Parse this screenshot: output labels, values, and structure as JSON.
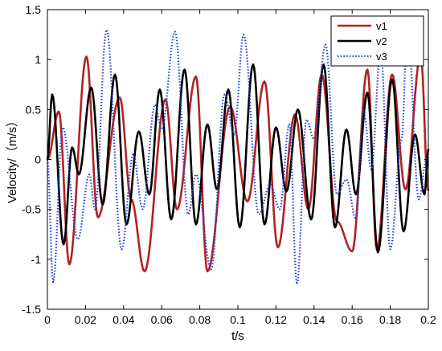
{
  "chart_data": {
    "type": "line",
    "title": "",
    "xlabel": "t/s",
    "ylabel": "Velocity/（m/s）",
    "xlim": [
      0,
      0.2
    ],
    "ylim": [
      -1.5,
      1.5
    ],
    "x_ticks": [
      0,
      0.02,
      0.04,
      0.06,
      0.08,
      0.1,
      0.12,
      0.14,
      0.16,
      0.18,
      0.2
    ],
    "x_tick_labels": [
      "0",
      "0.02",
      "0.04",
      "0.06",
      "0.08",
      "0.1",
      "0.12",
      "0.14",
      "0.16",
      "0.18",
      "0.2"
    ],
    "y_ticks": [
      -1.5,
      -1,
      -0.5,
      0,
      0.5,
      1,
      1.5
    ],
    "y_tick_labels": [
      "-1.5",
      "-1",
      "-0.5",
      "0",
      "0.5",
      "1",
      "1.5"
    ],
    "grid": false,
    "legend_position": "top-right",
    "sample_step": 0.0005,
    "series": [
      {
        "name": "v1",
        "color": "#b22222",
        "style": "solid",
        "peaks": [
          {
            "t": 0.006,
            "v": 0.48
          },
          {
            "t": 0.0115,
            "v": -1.05
          },
          {
            "t": 0.0205,
            "v": 1.03
          },
          {
            "t": 0.0265,
            "v": -0.58
          },
          {
            "t": 0.038,
            "v": 0.62
          },
          {
            "t": 0.044,
            "v": -0.4
          },
          {
            "t": 0.051,
            "v": -1.12
          },
          {
            "t": 0.062,
            "v": 0.6
          },
          {
            "t": 0.068,
            "v": -0.5
          },
          {
            "t": 0.078,
            "v": 0.83
          },
          {
            "t": 0.084,
            "v": -1.12
          },
          {
            "t": 0.096,
            "v": 0.53
          },
          {
            "t": 0.105,
            "v": -0.42
          },
          {
            "t": 0.114,
            "v": 0.78
          },
          {
            "t": 0.121,
            "v": -0.88
          },
          {
            "t": 0.13,
            "v": 0.45
          },
          {
            "t": 0.137,
            "v": -0.5
          },
          {
            "t": 0.144,
            "v": 0.85
          },
          {
            "t": 0.152,
            "v": -0.62
          },
          {
            "t": 0.16,
            "v": -0.92
          },
          {
            "t": 0.168,
            "v": 0.9
          },
          {
            "t": 0.173,
            "v": -0.9
          },
          {
            "t": 0.181,
            "v": 0.85
          },
          {
            "t": 0.188,
            "v": -0.3
          },
          {
            "t": 0.196,
            "v": 1.05
          }
        ]
      },
      {
        "name": "v2",
        "color": "#000000",
        "style": "solid",
        "peaks": [
          {
            "t": 0.0025,
            "v": 0.65
          },
          {
            "t": 0.0085,
            "v": -0.85
          },
          {
            "t": 0.013,
            "v": 0.12
          },
          {
            "t": 0.0165,
            "v": -0.15
          },
          {
            "t": 0.023,
            "v": 0.72
          },
          {
            "t": 0.029,
            "v": -0.45
          },
          {
            "t": 0.0355,
            "v": 0.85
          },
          {
            "t": 0.0415,
            "v": -0.65
          },
          {
            "t": 0.048,
            "v": 0.28
          },
          {
            "t": 0.0535,
            "v": -0.35
          },
          {
            "t": 0.059,
            "v": 0.7
          },
          {
            "t": 0.065,
            "v": -0.6
          },
          {
            "t": 0.072,
            "v": 0.9
          },
          {
            "t": 0.078,
            "v": -0.65
          },
          {
            "t": 0.084,
            "v": 0.35
          },
          {
            "t": 0.089,
            "v": -0.3
          },
          {
            "t": 0.095,
            "v": 0.7
          },
          {
            "t": 0.101,
            "v": -0.68
          },
          {
            "t": 0.108,
            "v": 0.95
          },
          {
            "t": 0.114,
            "v": -0.65
          },
          {
            "t": 0.12,
            "v": 0.32
          },
          {
            "t": 0.1255,
            "v": -0.32
          },
          {
            "t": 0.1315,
            "v": 0.5
          },
          {
            "t": 0.1385,
            "v": -0.6
          },
          {
            "t": 0.145,
            "v": 0.95
          },
          {
            "t": 0.151,
            "v": -0.68
          },
          {
            "t": 0.157,
            "v": 0.3
          },
          {
            "t": 0.162,
            "v": -0.35
          },
          {
            "t": 0.168,
            "v": 0.67
          },
          {
            "t": 0.1735,
            "v": -0.93
          },
          {
            "t": 0.181,
            "v": 0.8
          },
          {
            "t": 0.187,
            "v": -0.72
          },
          {
            "t": 0.193,
            "v": 0.25
          },
          {
            "t": 0.198,
            "v": -0.35
          }
        ]
      },
      {
        "name": "v3",
        "color": "#1f3fd8",
        "style": "dotted",
        "peaks": [
          {
            "t": 0.003,
            "v": -1.23
          },
          {
            "t": 0.008,
            "v": 0.32
          },
          {
            "t": 0.016,
            "v": -0.8
          },
          {
            "t": 0.022,
            "v": -0.15
          },
          {
            "t": 0.025,
            "v": -0.5
          },
          {
            "t": 0.031,
            "v": 1.3
          },
          {
            "t": 0.039,
            "v": -0.9
          },
          {
            "t": 0.045,
            "v": 0.05
          },
          {
            "t": 0.05,
            "v": -0.5
          },
          {
            "t": 0.0565,
            "v": 0.55
          },
          {
            "t": 0.06,
            "v": 0.3
          },
          {
            "t": 0.067,
            "v": 1.28
          },
          {
            "t": 0.074,
            "v": -0.55
          },
          {
            "t": 0.078,
            "v": -0.15
          },
          {
            "t": 0.086,
            "v": -1.1
          },
          {
            "t": 0.093,
            "v": 0.65
          },
          {
            "t": 0.098,
            "v": 0.25
          },
          {
            "t": 0.103,
            "v": 1.25
          },
          {
            "t": 0.111,
            "v": -0.55
          },
          {
            "t": 0.117,
            "v": -0.25
          },
          {
            "t": 0.122,
            "v": -0.5
          },
          {
            "t": 0.127,
            "v": 0.35
          },
          {
            "t": 0.131,
            "v": -1.25
          },
          {
            "t": 0.136,
            "v": 0.4
          },
          {
            "t": 0.14,
            "v": 0.2
          },
          {
            "t": 0.146,
            "v": 1.15
          },
          {
            "t": 0.152,
            "v": -0.35
          },
          {
            "t": 0.157,
            "v": -0.2
          },
          {
            "t": 0.162,
            "v": -0.6
          },
          {
            "t": 0.166,
            "v": 0.5
          },
          {
            "t": 0.17,
            "v": -0.1
          },
          {
            "t": 0.175,
            "v": 1.1
          },
          {
            "t": 0.18,
            "v": -0.9
          },
          {
            "t": 0.186,
            "v": 0.2
          },
          {
            "t": 0.189,
            "v": 1.35
          },
          {
            "t": 0.195,
            "v": -0.4
          },
          {
            "t": 0.199,
            "v": 0.0
          }
        ]
      }
    ]
  }
}
